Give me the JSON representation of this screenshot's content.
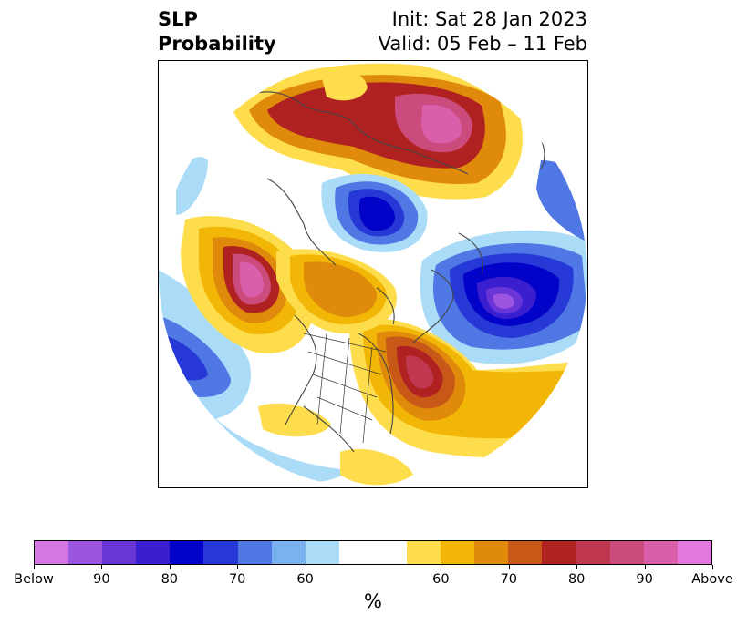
{
  "title": {
    "left_line1": "SLP",
    "left_line2": "Probability",
    "right_line1": "Init: Sat 28 Jan 2023",
    "right_line2": "Valid: 05 Feb – 11 Feb"
  },
  "colorbar": {
    "units": "%",
    "colors": [
      "#d676e4",
      "#9c55e0",
      "#6a35d6",
      "#3a1fd0",
      "#0202c8",
      "#2639d6",
      "#4f78e4",
      "#79b2f0",
      "#aadcf8",
      "#ffffff",
      "#ffffff",
      "#fedd4c",
      "#f2b706",
      "#e08a0c",
      "#c85818",
      "#b02222",
      "#c03850",
      "#cc4b7d",
      "#da5fab",
      "#e377e0"
    ],
    "tick_labels": [
      "Below",
      "90",
      "80",
      "70",
      "60",
      "60",
      "70",
      "80",
      "90",
      "Above"
    ]
  },
  "map": {
    "projection": "north-polar-stereographic",
    "anomalies": [
      {
        "region": "Arctic / northern Russia",
        "category": "above",
        "max_percent": 90
      },
      {
        "region": "Alaska / Gulf of Alaska",
        "category": "above",
        "max_percent": 90
      },
      {
        "region": "Greenland / Baffin Bay",
        "category": "below",
        "max_percent": 80
      },
      {
        "region": "North Atlantic / near Iceland",
        "category": "below",
        "max_percent": 90
      },
      {
        "region": "Eastern North America / Hudson Bay",
        "category": "above",
        "max_percent": 80
      },
      {
        "region": "Subtropical North Pacific",
        "category": "below",
        "max_percent": 80
      },
      {
        "region": "Eastern Atlantic / Europe-Africa",
        "category": "above",
        "max_percent": 70
      }
    ]
  }
}
